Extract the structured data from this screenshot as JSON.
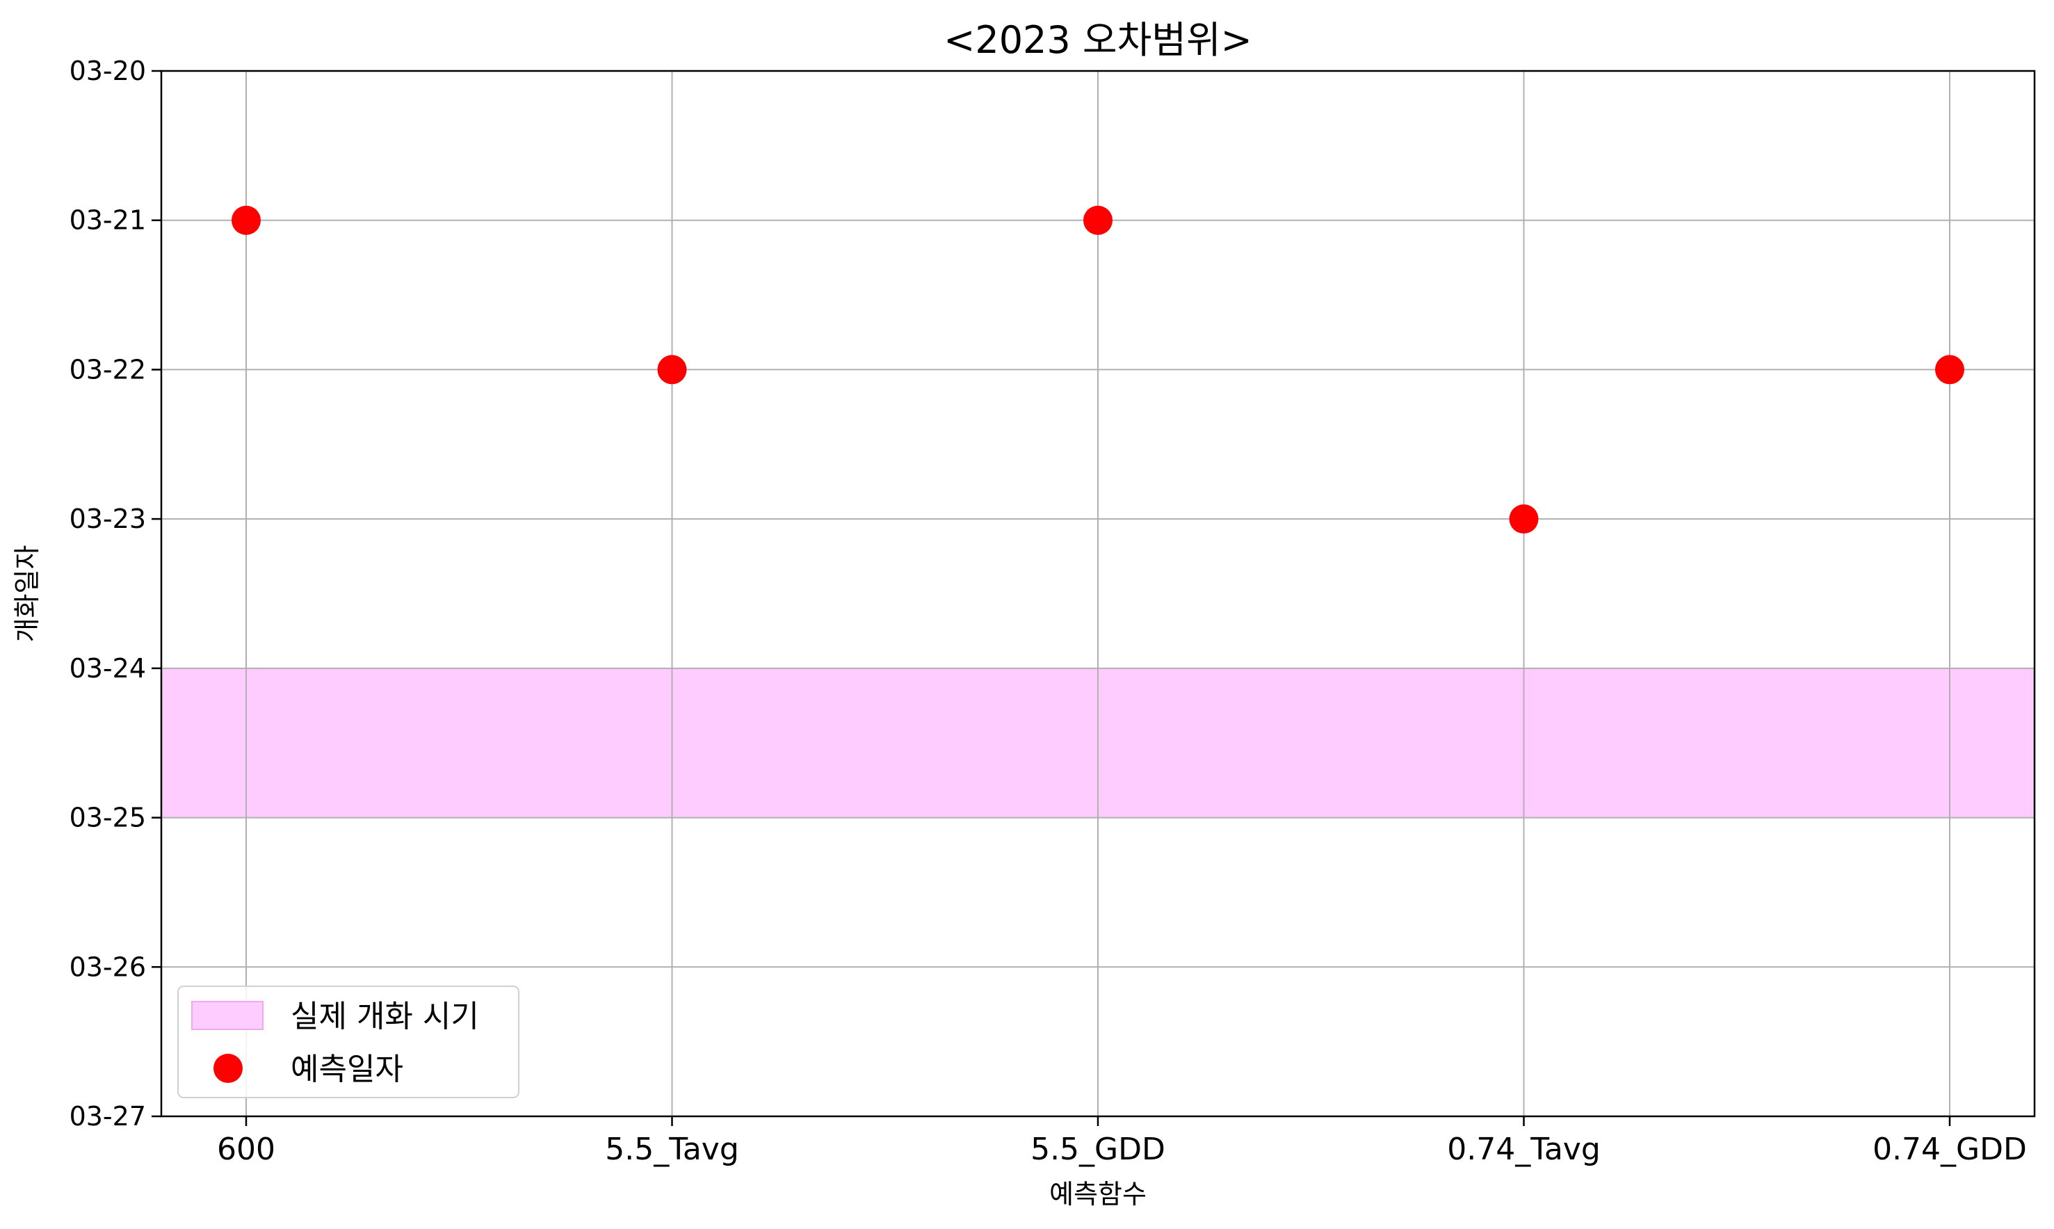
{
  "chart_data": {
    "type": "scatter",
    "title": "<2023 오차범위>",
    "xlabel": "예측함수",
    "ylabel": "개화일자",
    "categories": [
      "600",
      "5.5_Tavg",
      "5.5_GDD",
      "0.74_Tavg",
      "0.74_GDD"
    ],
    "y_ticks": [
      "03-20",
      "03-21",
      "03-22",
      "03-23",
      "03-24",
      "03-25",
      "03-26",
      "03-27"
    ],
    "y_axis_inverted": true,
    "series": [
      {
        "name": "예측일자",
        "values": [
          "03-21",
          "03-22",
          "03-21",
          "03-23",
          "03-22"
        ],
        "color": "#ff0000"
      }
    ],
    "band": {
      "name": "실제 개화 시기",
      "from": "03-24",
      "to": "03-25",
      "color": "#ffccff"
    },
    "grid": true,
    "legend_position": "lower-left"
  }
}
